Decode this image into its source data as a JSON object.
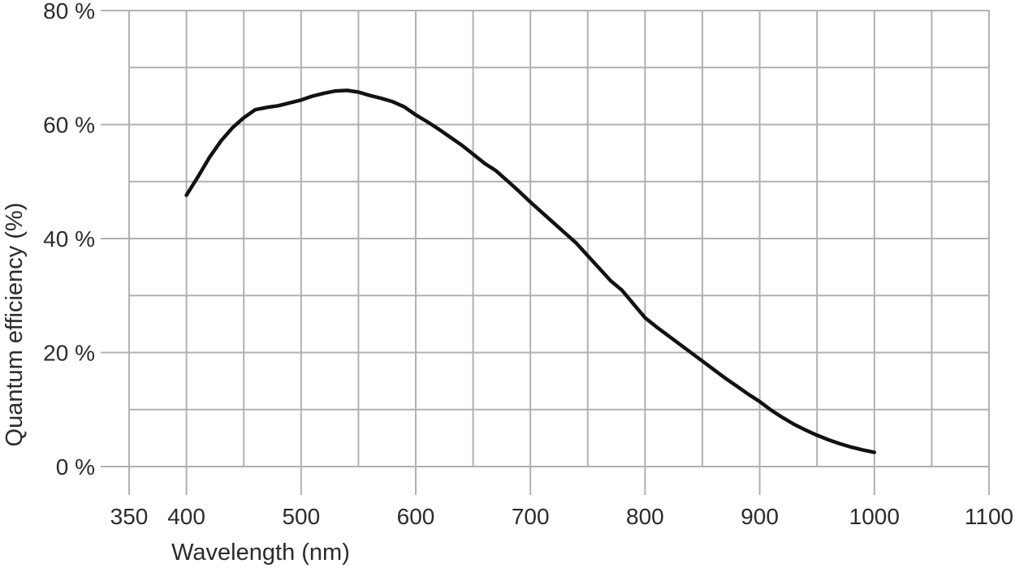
{
  "chart_data": {
    "type": "line",
    "title": "",
    "xlabel": "Wavelength (nm)",
    "ylabel": "Quantum efficiency (%)",
    "xlim": [
      350,
      1100
    ],
    "ylim": [
      0,
      80
    ],
    "x_grid_step": 50,
    "y_grid_step": 10,
    "grid": true,
    "legend": false,
    "x_tick_values": [
      350,
      400,
      500,
      600,
      700,
      800,
      900,
      1000,
      1100
    ],
    "x_tick_labels": [
      "350",
      "400",
      "500",
      "600",
      "700",
      "800",
      "900",
      "1000",
      "1100"
    ],
    "y_tick_values": [
      0,
      20,
      40,
      60,
      80
    ],
    "y_tick_labels": [
      "0 %",
      "20 %",
      "40 %",
      "60 %",
      "80 %"
    ],
    "colors": {
      "line": "#121212",
      "grid": "#b1b1b1",
      "text": "#2b2b2b",
      "background": "#ffffff"
    },
    "series": [
      {
        "points": [
          [
            400,
            47.6
          ],
          [
            410,
            50.8
          ],
          [
            420,
            54.2
          ],
          [
            430,
            57.1
          ],
          [
            440,
            59.4
          ],
          [
            450,
            61.2
          ],
          [
            460,
            62.6
          ],
          [
            470,
            63.0
          ],
          [
            480,
            63.3
          ],
          [
            490,
            63.8
          ],
          [
            500,
            64.3
          ],
          [
            510,
            65.0
          ],
          [
            520,
            65.5
          ],
          [
            530,
            65.9
          ],
          [
            540,
            66.0
          ],
          [
            550,
            65.7
          ],
          [
            560,
            65.1
          ],
          [
            570,
            64.6
          ],
          [
            580,
            64.0
          ],
          [
            590,
            63.1
          ],
          [
            600,
            61.7
          ],
          [
            610,
            60.5
          ],
          [
            620,
            59.2
          ],
          [
            630,
            57.8
          ],
          [
            640,
            56.4
          ],
          [
            650,
            54.8
          ],
          [
            660,
            53.2
          ],
          [
            670,
            51.9
          ],
          [
            680,
            50.1
          ],
          [
            690,
            48.3
          ],
          [
            700,
            46.4
          ],
          [
            710,
            44.6
          ],
          [
            720,
            42.8
          ],
          [
            730,
            41.0
          ],
          [
            740,
            39.2
          ],
          [
            750,
            37.0
          ],
          [
            760,
            34.8
          ],
          [
            770,
            32.6
          ],
          [
            780,
            30.9
          ],
          [
            790,
            28.5
          ],
          [
            800,
            26.1
          ],
          [
            810,
            24.5
          ],
          [
            820,
            23.0
          ],
          [
            830,
            21.5
          ],
          [
            840,
            20.0
          ],
          [
            850,
            18.5
          ],
          [
            860,
            17.0
          ],
          [
            870,
            15.5
          ],
          [
            880,
            14.1
          ],
          [
            890,
            12.7
          ],
          [
            900,
            11.4
          ],
          [
            910,
            9.9
          ],
          [
            920,
            8.6
          ],
          [
            930,
            7.4
          ],
          [
            940,
            6.4
          ],
          [
            950,
            5.5
          ],
          [
            960,
            4.7
          ],
          [
            970,
            4.0
          ],
          [
            980,
            3.4
          ],
          [
            990,
            2.9
          ],
          [
            1000,
            2.5
          ]
        ]
      }
    ]
  }
}
